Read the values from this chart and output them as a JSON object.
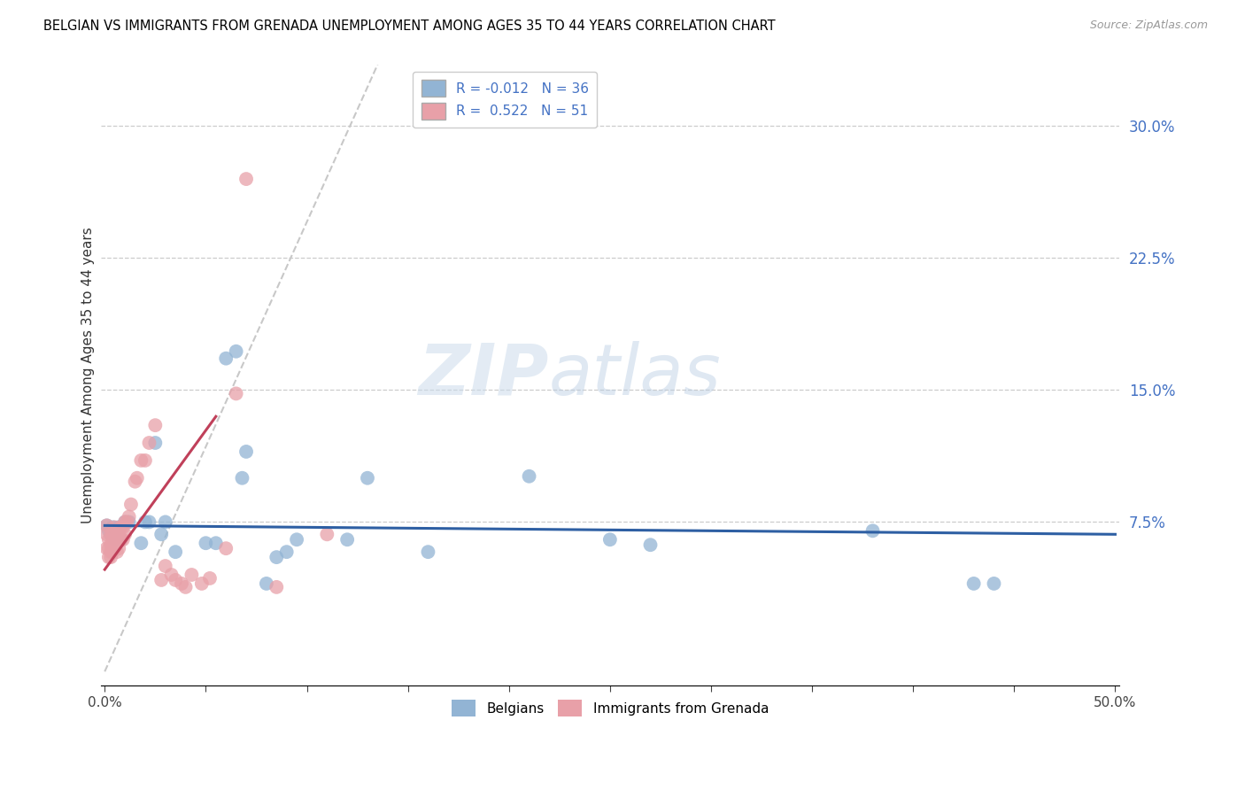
{
  "title": "BELGIAN VS IMMIGRANTS FROM GRENADA UNEMPLOYMENT AMONG AGES 35 TO 44 YEARS CORRELATION CHART",
  "source": "Source: ZipAtlas.com",
  "ylabel": "Unemployment Among Ages 35 to 44 years",
  "xlim": [
    -0.002,
    0.502
  ],
  "ylim": [
    -0.018,
    0.335
  ],
  "ytick_positions_right": [
    0.075,
    0.15,
    0.225,
    0.3
  ],
  "ytick_labels_right": [
    "7.5%",
    "15.0%",
    "22.5%",
    "30.0%"
  ],
  "blue_color": "#92b4d4",
  "pink_color": "#e8a0a8",
  "blue_line_color": "#2e5fa3",
  "pink_line_color": "#c0405a",
  "dashed_line_color": "#c8c8c8",
  "legend_R_blue": "-0.012",
  "legend_N_blue": "36",
  "legend_R_pink": "0.522",
  "legend_N_pink": "51",
  "legend_label_blue": "Belgians",
  "legend_label_pink": "Immigrants from Grenada",
  "watermark_zip": "ZIP",
  "watermark_atlas": "atlas",
  "blue_line_x0": 0.0,
  "blue_line_y0": 0.073,
  "blue_line_x1": 0.5,
  "blue_line_y1": 0.068,
  "pink_line_x0": 0.0,
  "pink_line_y0": 0.048,
  "pink_line_x1": 0.055,
  "pink_line_y1": 0.135,
  "dashed_line_x0": 0.0,
  "dashed_line_y0": -0.01,
  "dashed_line_x1": 0.135,
  "dashed_line_y1": 0.335,
  "blue_x": [
    0.001,
    0.002,
    0.003,
    0.004,
    0.005,
    0.006,
    0.007,
    0.008,
    0.01,
    0.012,
    0.018,
    0.02,
    0.022,
    0.025,
    0.028,
    0.03,
    0.035,
    0.05,
    0.055,
    0.06,
    0.065,
    0.068,
    0.07,
    0.08,
    0.085,
    0.09,
    0.095,
    0.12,
    0.13,
    0.16,
    0.21,
    0.25,
    0.27,
    0.38,
    0.43,
    0.44
  ],
  "blue_y": [
    0.073,
    0.07,
    0.068,
    0.072,
    0.065,
    0.07,
    0.072,
    0.065,
    0.075,
    0.075,
    0.063,
    0.075,
    0.075,
    0.12,
    0.068,
    0.075,
    0.058,
    0.063,
    0.063,
    0.168,
    0.172,
    0.1,
    0.115,
    0.04,
    0.055,
    0.058,
    0.065,
    0.065,
    0.1,
    0.058,
    0.101,
    0.065,
    0.062,
    0.07,
    0.04,
    0.04
  ],
  "pink_x": [
    0.001,
    0.001,
    0.001,
    0.002,
    0.002,
    0.002,
    0.003,
    0.003,
    0.003,
    0.003,
    0.004,
    0.004,
    0.004,
    0.005,
    0.005,
    0.005,
    0.006,
    0.006,
    0.006,
    0.007,
    0.007,
    0.007,
    0.008,
    0.008,
    0.009,
    0.009,
    0.01,
    0.01,
    0.011,
    0.012,
    0.013,
    0.015,
    0.016,
    0.018,
    0.02,
    0.022,
    0.025,
    0.028,
    0.03,
    0.033,
    0.035,
    0.038,
    0.04,
    0.043,
    0.048,
    0.052,
    0.06,
    0.065,
    0.07,
    0.085,
    0.11
  ],
  "pink_y": [
    0.06,
    0.068,
    0.073,
    0.055,
    0.06,
    0.065,
    0.055,
    0.058,
    0.062,
    0.068,
    0.058,
    0.062,
    0.068,
    0.06,
    0.065,
    0.072,
    0.058,
    0.065,
    0.07,
    0.06,
    0.065,
    0.07,
    0.065,
    0.072,
    0.065,
    0.072,
    0.068,
    0.075,
    0.075,
    0.078,
    0.085,
    0.098,
    0.1,
    0.11,
    0.11,
    0.12,
    0.13,
    0.042,
    0.05,
    0.045,
    0.042,
    0.04,
    0.038,
    0.045,
    0.04,
    0.043,
    0.06,
    0.148,
    0.27,
    0.038,
    0.068
  ]
}
